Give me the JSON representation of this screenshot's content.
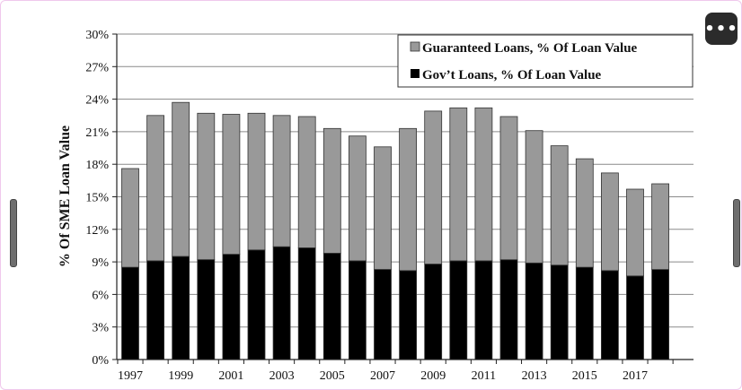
{
  "ui": {
    "more_button_label": "•••"
  },
  "chart_data": {
    "type": "bar",
    "stacked": true,
    "ylabel": "% Of SME Loan Value",
    "ylim": [
      0,
      30
    ],
    "yticks": [
      "0%",
      "3%",
      "6%",
      "9%",
      "12%",
      "15%",
      "18%",
      "21%",
      "24%",
      "27%",
      "30%"
    ],
    "ytick_values": [
      0,
      3,
      6,
      9,
      12,
      15,
      18,
      21,
      24,
      27,
      30
    ],
    "categories": [
      "1997",
      "1998",
      "1999",
      "2000",
      "2001",
      "2002",
      "2003",
      "2004",
      "2005",
      "2006",
      "2007",
      "2008",
      "2009",
      "2010",
      "2011",
      "2012",
      "2013",
      "2014",
      "2015",
      "2016",
      "2017",
      "2018"
    ],
    "xtick_labels": [
      "1997",
      "1999",
      "2001",
      "2003",
      "2005",
      "2007",
      "2009",
      "2011",
      "2013",
      "2015",
      "2017"
    ],
    "grid": true,
    "legend_position": "top-right",
    "series": [
      {
        "name": "Gov’t Loans, % Of Loan Value",
        "color": "#000000",
        "values": [
          8.5,
          9.1,
          9.5,
          9.2,
          9.7,
          10.1,
          10.4,
          10.3,
          9.8,
          9.1,
          8.3,
          8.2,
          8.8,
          9.1,
          9.1,
          9.2,
          8.9,
          8.7,
          8.5,
          8.2,
          7.7,
          8.3
        ]
      },
      {
        "name": "Guaranteed Loans, % Of Loan Value",
        "color": "#999999",
        "values": [
          9.1,
          13.4,
          14.2,
          13.5,
          12.9,
          12.6,
          12.1,
          12.1,
          11.5,
          11.5,
          11.3,
          13.1,
          14.1,
          14.1,
          14.1,
          13.2,
          12.2,
          11.0,
          10.0,
          9.0,
          8.0,
          7.9
        ]
      }
    ]
  }
}
